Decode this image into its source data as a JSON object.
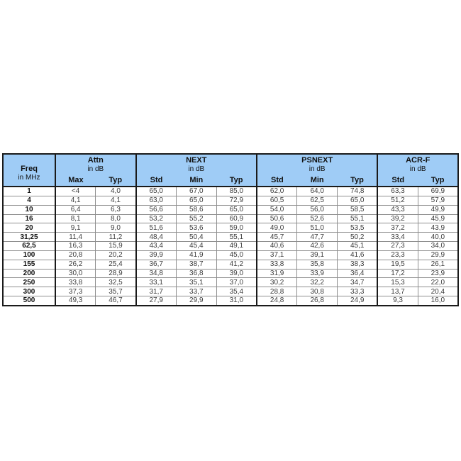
{
  "chart_data": {
    "type": "table",
    "freq_column": {
      "title": "Freq",
      "unit": "in MHz"
    },
    "column_groups": [
      {
        "label": "Attn",
        "unit": "in dB",
        "columns": [
          "Max",
          "Typ"
        ]
      },
      {
        "label": "NEXT",
        "unit": "in dB",
        "columns": [
          "Std",
          "Min",
          "Typ"
        ]
      },
      {
        "label": "PSNEXT",
        "unit": "in dB",
        "columns": [
          "Std",
          "Min",
          "Typ"
        ]
      },
      {
        "label": "ACR-F",
        "unit": "in dB",
        "columns": [
          "Std",
          "Typ"
        ]
      }
    ],
    "rows": [
      {
        "freq": "1",
        "values": [
          "<4",
          "4,0",
          "65,0",
          "67,0",
          "85,0",
          "62,0",
          "64,0",
          "74,8",
          "63,3",
          "69,9"
        ]
      },
      {
        "freq": "4",
        "values": [
          "4,1",
          "4,1",
          "63,0",
          "65,0",
          "72,9",
          "60,5",
          "62,5",
          "65,0",
          "51,2",
          "57,9"
        ]
      },
      {
        "freq": "10",
        "values": [
          "6,4",
          "6,3",
          "56,6",
          "58,6",
          "65,0",
          "54,0",
          "56,0",
          "58,5",
          "43,3",
          "49,9"
        ]
      },
      {
        "freq": "16",
        "values": [
          "8,1",
          "8,0",
          "53,2",
          "55,2",
          "60,9",
          "50,6",
          "52,6",
          "55,1",
          "39,2",
          "45,9"
        ]
      },
      {
        "freq": "20",
        "values": [
          "9,1",
          "9,0",
          "51,6",
          "53,6",
          "59,0",
          "49,0",
          "51,0",
          "53,5",
          "37,2",
          "43,9"
        ]
      },
      {
        "freq": "31,25",
        "values": [
          "11,4",
          "11,2",
          "48,4",
          "50,4",
          "55,1",
          "45,7",
          "47,7",
          "50,2",
          "33,4",
          "40,0"
        ]
      },
      {
        "freq": "62,5",
        "values": [
          "16,3",
          "15,9",
          "43,4",
          "45,4",
          "49,1",
          "40,6",
          "42,6",
          "45,1",
          "27,3",
          "34,0"
        ]
      },
      {
        "freq": "100",
        "values": [
          "20,8",
          "20,2",
          "39,9",
          "41,9",
          "45,0",
          "37,1",
          "39,1",
          "41,6",
          "23,3",
          "29,9"
        ]
      },
      {
        "freq": "155",
        "values": [
          "26,2",
          "25,4",
          "36,7",
          "38,7",
          "41,2",
          "33,8",
          "35,8",
          "38,3",
          "19,5",
          "26,1"
        ]
      },
      {
        "freq": "200",
        "values": [
          "30,0",
          "28,9",
          "34,8",
          "36,8",
          "39,0",
          "31,9",
          "33,9",
          "36,4",
          "17,2",
          "23,9"
        ]
      },
      {
        "freq": "250",
        "values": [
          "33,8",
          "32,5",
          "33,1",
          "35,1",
          "37,0",
          "30,2",
          "32,2",
          "34,7",
          "15,3",
          "22,0"
        ]
      },
      {
        "freq": "300",
        "values": [
          "37,3",
          "35,7",
          "31,7",
          "33,7",
          "35,4",
          "28,8",
          "30,8",
          "33,3",
          "13,7",
          "20,4"
        ]
      },
      {
        "freq": "500",
        "values": [
          "49,3",
          "46,7",
          "27,9",
          "29,9",
          "31,0",
          "24,8",
          "26,8",
          "24,9",
          "9,3",
          "16,0"
        ]
      }
    ],
    "layout": {
      "header_bg": "#9FCCF6",
      "grid_line": "#8F8F8F",
      "border": "#1A1A1A",
      "group_column_spans": [
        2,
        3,
        3,
        2
      ],
      "legend": "none",
      "grid": "on"
    }
  }
}
